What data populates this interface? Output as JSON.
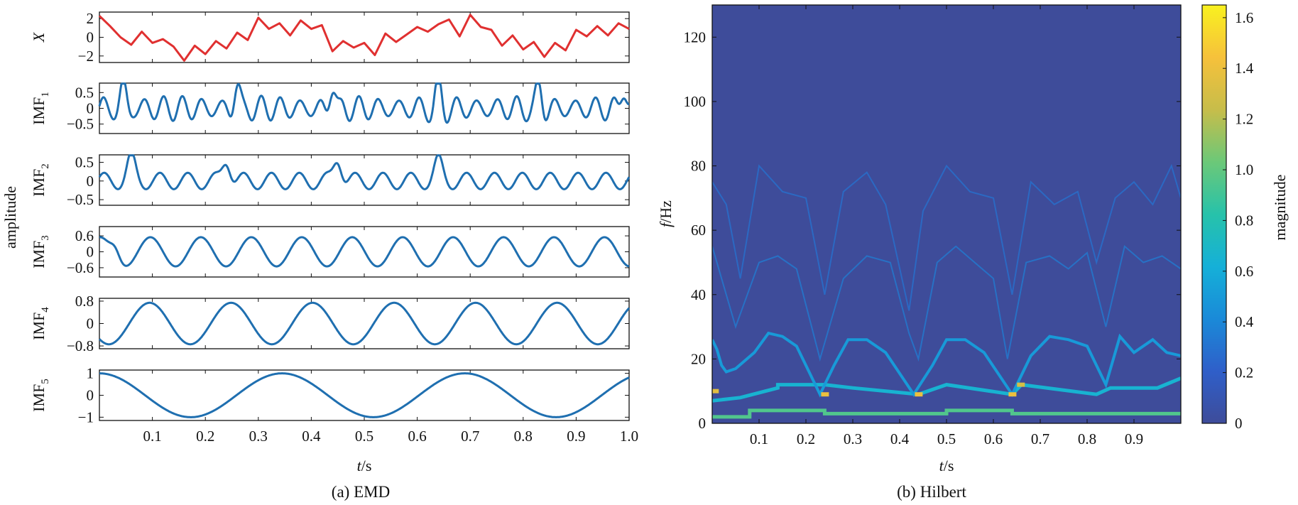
{
  "figure": {
    "caption_a": "(a) EMD",
    "caption_b": "(b) Hilbert"
  },
  "chart_data": [
    {
      "type": "line",
      "title": "",
      "xlabel": "t/s",
      "ylabel": "amplitude",
      "xlim": [
        0,
        1
      ],
      "xticks": [
        "0.1",
        "0.2",
        "0.3",
        "0.4",
        "0.5",
        "0.6",
        "0.7",
        "0.8",
        "0.9",
        "1.0"
      ],
      "colors": {
        "signal": "#e03030",
        "imf": "#1f6fb0"
      },
      "rows": [
        {
          "name": "X",
          "ylim": [
            -2.7,
            2.7
          ],
          "yticks": [
            "2",
            "0",
            "−2"
          ],
          "ytick_values": [
            2,
            0,
            -2
          ],
          "x": [
            0,
            0.02,
            0.04,
            0.06,
            0.08,
            0.1,
            0.12,
            0.14,
            0.16,
            0.18,
            0.2,
            0.22,
            0.24,
            0.26,
            0.28,
            0.3,
            0.32,
            0.34,
            0.36,
            0.38,
            0.4,
            0.42,
            0.44,
            0.46,
            0.48,
            0.5,
            0.52,
            0.54,
            0.56,
            0.58,
            0.6,
            0.62,
            0.64,
            0.66,
            0.68,
            0.7,
            0.72,
            0.74,
            0.76,
            0.78,
            0.8,
            0.82,
            0.84,
            0.86,
            0.88,
            0.9,
            0.92,
            0.94,
            0.96,
            0.98,
            1.0
          ],
          "values": [
            2.3,
            1.2,
            0.0,
            -0.8,
            0.6,
            -0.6,
            -0.2,
            -1.0,
            -2.5,
            -0.9,
            -1.8,
            -0.4,
            -1.2,
            0.5,
            -0.3,
            2.1,
            0.9,
            1.5,
            0.2,
            1.8,
            0.9,
            1.3,
            -1.5,
            -0.4,
            -1.1,
            -0.6,
            -1.9,
            0.4,
            -0.5,
            0.3,
            1.1,
            0.6,
            1.4,
            1.9,
            0.1,
            2.4,
            1.1,
            0.8,
            -0.9,
            0.2,
            -1.3,
            -0.5,
            -2.1,
            -0.6,
            -1.4,
            0.8,
            0.1,
            1.2,
            0.2,
            1.5,
            0.9
          ]
        },
        {
          "name": "IMF",
          "sub": "1",
          "ylim": [
            -0.8,
            0.8
          ],
          "yticks": [
            "0.5",
            "0",
            "−0.5"
          ],
          "ytick_values": [
            0.5,
            0,
            -0.5
          ],
          "components": [
            {
              "amp": 0.32,
              "freq": 27,
              "phase": 0.0
            },
            {
              "amp": 0.08,
              "freq": 33,
              "phase": 1.0
            }
          ],
          "bursts": [
            {
              "t": 0.045,
              "amp": 0.7,
              "freq": 22
            },
            {
              "t": 0.26,
              "amp": 0.75,
              "freq": 22
            },
            {
              "t": 0.44,
              "amp": 0.75,
              "freq": 22
            },
            {
              "t": 0.64,
              "amp": 0.7,
              "freq": 22
            },
            {
              "t": 0.83,
              "amp": 0.7,
              "freq": 22
            },
            {
              "t": 0.99,
              "amp": 0.7,
              "freq": 22
            }
          ]
        },
        {
          "name": "IMF",
          "sub": "2",
          "ylim": [
            -0.65,
            0.7
          ],
          "yticks": [
            "0.5",
            "0",
            "−0.5"
          ],
          "ytick_values": [
            0.5,
            0,
            -0.5
          ],
          "components": [
            {
              "amp": 0.22,
              "freq": 19,
              "phase": 0.5
            }
          ],
          "bursts": [
            {
              "t": 0.06,
              "amp": 0.58,
              "freq": 9
            },
            {
              "t": 0.24,
              "amp": 0.58,
              "freq": 9
            },
            {
              "t": 0.45,
              "amp": 0.62,
              "freq": 9
            },
            {
              "t": 0.64,
              "amp": 0.5,
              "freq": 9
            }
          ]
        },
        {
          "name": "IMF",
          "sub": "3",
          "ylim": [
            -0.95,
            0.95
          ],
          "yticks": [
            "0.6",
            "0",
            "−0.6"
          ],
          "ytick_values": [
            0.6,
            0,
            -0.6
          ],
          "components": [
            {
              "amp": 0.55,
              "freq": 10.5,
              "phase": 1.5
            }
          ],
          "bursts": [
            {
              "t": 0.03,
              "amp": 0.35,
              "freq": 4
            }
          ]
        },
        {
          "name": "IMF",
          "sub": "4",
          "ylim": [
            -0.9,
            0.9
          ],
          "yticks": [
            "0.8",
            "0",
            "−0.8"
          ],
          "ytick_values": [
            0.8,
            0,
            -0.8
          ],
          "components": [
            {
              "amp": 0.74,
              "freq": 6.5,
              "phase": -2.3
            }
          ],
          "bursts": []
        },
        {
          "name": "IMF",
          "sub": "5",
          "ylim": [
            -1.15,
            1.15
          ],
          "yticks": [
            "1",
            "0",
            "−1"
          ],
          "ytick_values": [
            1,
            0,
            -1
          ],
          "components": [
            {
              "amp": 1.0,
              "freq": 2.9,
              "phase": 1.5708
            }
          ],
          "bursts": []
        }
      ]
    },
    {
      "type": "heatmap",
      "title": "",
      "xlabel": "t/s",
      "ylabel": "f/Hz",
      "xlim": [
        0,
        1
      ],
      "ylim": [
        0,
        130
      ],
      "xticks": [
        "0.1",
        "0.2",
        "0.3",
        "0.4",
        "0.5",
        "0.6",
        "0.7",
        "0.8",
        "0.9"
      ],
      "yticks": [
        "0",
        "20",
        "40",
        "60",
        "80",
        "100",
        "120"
      ],
      "ytick_values": [
        0,
        20,
        40,
        60,
        80,
        100,
        120
      ],
      "background_color": "#3e4c9a",
      "colorbar": {
        "label": "magnitude",
        "range": [
          0,
          1.65
        ],
        "ticks": [
          "0",
          "0.2",
          "0.4",
          "0.6",
          "0.8",
          "1.0",
          "1.2",
          "1.4",
          "1.6"
        ],
        "tick_values": [
          0,
          0.2,
          0.4,
          0.6,
          0.8,
          1.0,
          1.2,
          1.4,
          1.6
        ],
        "colors": [
          "#3e4c9a",
          "#2f5fc9",
          "#1a8ad8",
          "#15b0d8",
          "#27c2aa",
          "#6cc878",
          "#c7bd4a",
          "#f6c13b",
          "#f9f11f"
        ]
      },
      "tracks": [
        {
          "name": "IMF5",
          "t": [
            0.0,
            0.08,
            0.08,
            0.24,
            0.24,
            0.5,
            0.5,
            0.64,
            0.64,
            1.0
          ],
          "f": [
            2,
            2,
            4,
            4,
            3,
            3,
            4,
            4,
            3,
            3
          ],
          "magnitude": 0.95
        },
        {
          "name": "IMF4",
          "t": [
            0.0,
            0.06,
            0.14,
            0.14,
            0.24,
            0.3,
            0.44,
            0.5,
            0.64,
            0.66,
            0.82,
            0.85,
            0.95,
            1.0
          ],
          "f": [
            7,
            8,
            11,
            12,
            12,
            11,
            9,
            12,
            9,
            12,
            9,
            11,
            11,
            14
          ],
          "magnitude": 0.65
        },
        {
          "name": "IMF3",
          "t": [
            0.0,
            0.01,
            0.02,
            0.03,
            0.05,
            0.09,
            0.12,
            0.15,
            0.18,
            0.23,
            0.26,
            0.29,
            0.33,
            0.37,
            0.43,
            0.47,
            0.5,
            0.54,
            0.58,
            0.64,
            0.68,
            0.72,
            0.76,
            0.8,
            0.84,
            0.87,
            0.9,
            0.94,
            0.97,
            1.0
          ],
          "f": [
            26,
            23,
            18,
            16,
            17,
            22,
            28,
            27,
            24,
            9,
            18,
            26,
            26,
            22,
            9,
            18,
            26,
            26,
            22,
            9,
            21,
            27,
            26,
            24,
            12,
            27,
            22,
            26,
            22,
            21
          ],
          "magnitude": 0.5
        },
        {
          "name": "IMF2",
          "t": [
            0.0,
            0.03,
            0.05,
            0.1,
            0.14,
            0.18,
            0.23,
            0.28,
            0.33,
            0.38,
            0.42,
            0.44,
            0.48,
            0.52,
            0.56,
            0.6,
            0.63,
            0.67,
            0.72,
            0.76,
            0.8,
            0.84,
            0.88,
            0.92,
            0.96,
            1.0
          ],
          "f": [
            55,
            40,
            30,
            50,
            52,
            48,
            20,
            45,
            52,
            50,
            28,
            20,
            50,
            55,
            50,
            45,
            20,
            50,
            52,
            48,
            53,
            30,
            55,
            50,
            52,
            48
          ],
          "magnitude": 0.35
        },
        {
          "name": "IMF1",
          "t": [
            0.0,
            0.03,
            0.06,
            0.1,
            0.15,
            0.2,
            0.24,
            0.28,
            0.33,
            0.37,
            0.42,
            0.45,
            0.5,
            0.55,
            0.6,
            0.64,
            0.68,
            0.73,
            0.78,
            0.82,
            0.86,
            0.9,
            0.94,
            0.98,
            1.0
          ],
          "f": [
            75,
            68,
            45,
            80,
            72,
            70,
            40,
            72,
            78,
            68,
            35,
            66,
            80,
            72,
            70,
            40,
            75,
            68,
            72,
            50,
            70,
            75,
            68,
            80,
            70
          ],
          "magnitude": 0.3
        }
      ],
      "peaks": [
        {
          "t": 0.005,
          "f": 10,
          "magnitude": 1.35
        },
        {
          "t": 0.24,
          "f": 9,
          "magnitude": 1.4
        },
        {
          "t": 0.44,
          "f": 9,
          "magnitude": 1.4
        },
        {
          "t": 0.64,
          "f": 9,
          "magnitude": 1.4
        },
        {
          "t": 0.658,
          "f": 12,
          "magnitude": 1.3
        }
      ]
    }
  ]
}
